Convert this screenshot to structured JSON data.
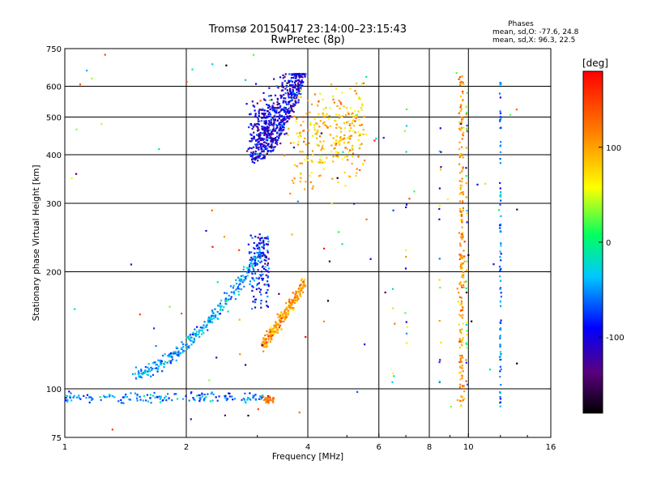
{
  "chart_data": {
    "type": "scatter",
    "title": "Tromsø 20150417 23:14:00–23:15:43",
    "subtitle": "RwPretec (8p)",
    "xlabel": "Frequency [MHz]",
    "ylabel": "Stationary phase Virtual Height [km]",
    "x_scale": "log",
    "y_scale": "log",
    "xlim": [
      1,
      16
    ],
    "ylim": [
      75,
      750
    ],
    "x_ticks": [
      1,
      2,
      4,
      6,
      8,
      10,
      16
    ],
    "x_tick_labels": [
      "1",
      "2",
      "4",
      "6",
      "8",
      "10",
      "16"
    ],
    "x_grid_lines": [
      2,
      4,
      6,
      8,
      10
    ],
    "y_ticks": [
      75,
      100,
      200,
      300,
      400,
      500,
      600,
      750
    ],
    "y_tick_labels": [
      "75",
      "100",
      "200",
      "300",
      "400",
      "500",
      "600",
      "750"
    ],
    "y_grid_lines": [
      100,
      200,
      300,
      400,
      500,
      600
    ],
    "grid": true,
    "stats": {
      "heading": "Phases",
      "line1": "mean, sd,O: -77.6, 24.8",
      "line2": "mean, sd,X:  96.3, 22.5"
    },
    "colorbar": {
      "label": "[deg]",
      "range": [
        -180,
        180
      ],
      "ticks": [
        100,
        0,
        -100
      ],
      "tick_labels": [
        "100",
        "0",
        "-100"
      ]
    },
    "series": [
      {
        "name": "E-region trace (blue)",
        "freq_range": [
          1.0,
          3.2
        ],
        "height_range": [
          92,
          230
        ],
        "phase_deg": -90
      },
      {
        "name": "F-region O-trace (blue)",
        "freq_range": [
          2.9,
          3.9
        ],
        "height_range": [
          160,
          640
        ],
        "phase_deg": -100
      },
      {
        "name": "F-region X-trace (yellow/orange)",
        "freq_range": [
          3.0,
          5.5
        ],
        "height_range": [
          130,
          600
        ],
        "phase_deg": 110
      },
      {
        "name": "Interference line 9.5 MHz",
        "freq_range": [
          9.5,
          9.9
        ],
        "height_range": [
          90,
          640
        ],
        "phase_deg": 110
      },
      {
        "name": "Interference line 12 MHz",
        "freq_range": [
          11.9,
          12.1
        ],
        "height_range": [
          90,
          620
        ],
        "phase_deg": -70
      }
    ]
  }
}
